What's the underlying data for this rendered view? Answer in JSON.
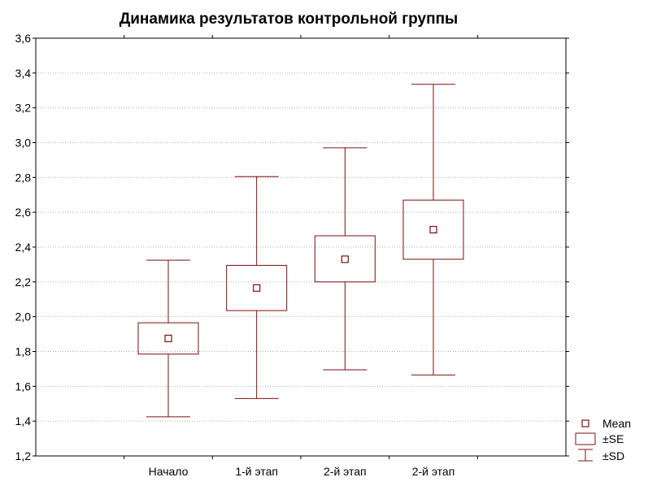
{
  "chart_data": {
    "type": "box",
    "title": "Динамика результатов контрольной группы",
    "categories": [
      "Начало",
      "1-й этап",
      "2-й этап",
      "2-й этап"
    ],
    "series": [
      {
        "mean": [
          1.875,
          2.165,
          2.33,
          2.5
        ],
        "se_low": [
          1.785,
          2.035,
          2.2,
          2.33
        ],
        "se_high": [
          1.965,
          2.295,
          2.465,
          2.67
        ],
        "sd_low": [
          1.425,
          1.53,
          1.695,
          1.665
        ],
        "sd_high": [
          2.325,
          2.805,
          2.97,
          3.335
        ]
      }
    ],
    "ylim": [
      1.2,
      3.6
    ],
    "y_ticks": [
      "1,2",
      "1,4",
      "1,6",
      "1,8",
      "2,0",
      "2,2",
      "2,4",
      "2,6",
      "2,8",
      "3,0",
      "3,2",
      "3,4",
      "3,6"
    ],
    "grid": "horizontal-dotted",
    "legend": {
      "placement": "bottom-right",
      "entries": [
        "Mean",
        "±SE",
        "±SD"
      ]
    },
    "colors": {
      "mark": "#7a1010",
      "grid": "#b0b0b0",
      "axis": "#000000"
    }
  }
}
